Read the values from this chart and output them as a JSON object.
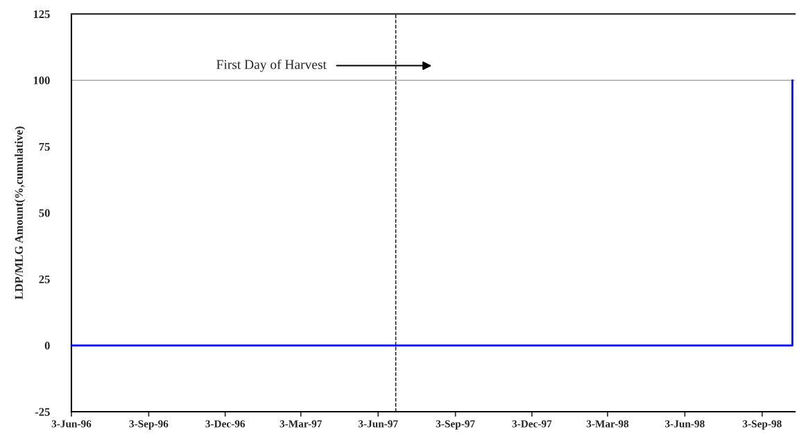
{
  "chart_data": {
    "type": "line",
    "ylabel": "LDP/MLG Amount(%,cumulative)",
    "series": [
      {
        "color": "#0000ff",
        "x": [
          "1996-06-03",
          "1998-10-09",
          "1998-10-09"
        ],
        "values": [
          0,
          0,
          100
        ]
      }
    ],
    "xlim": [
      "1996-06-03",
      "1998-10-12"
    ],
    "xticks": [
      {
        "value": "1996-06-03",
        "label": "3-Jun-96"
      },
      {
        "value": "1996-09-03",
        "label": "3-Sep-96"
      },
      {
        "value": "1996-12-03",
        "label": "3-Dec-96"
      },
      {
        "value": "1997-03-03",
        "label": "3-Mar-97"
      },
      {
        "value": "1997-06-03",
        "label": "3-Jun-97"
      },
      {
        "value": "1997-09-03",
        "label": "3-Sep-97"
      },
      {
        "value": "1997-12-03",
        "label": "3-Dec-97"
      },
      {
        "value": "1998-03-03",
        "label": "3-Mar-98"
      },
      {
        "value": "1998-06-03",
        "label": "3-Jun-98"
      },
      {
        "value": "1998-09-03",
        "label": "3-Sep-98"
      }
    ],
    "ylim": [
      -25,
      125
    ],
    "yticks": [
      -25,
      0,
      25,
      50,
      75,
      100,
      125
    ],
    "ref_lines": [
      {
        "axis": "x",
        "value": "1997-06-24",
        "color": "#000000",
        "line_style": "dashed"
      },
      {
        "axis": "y",
        "value": 100,
        "color": "#999999",
        "line_style": "solid"
      }
    ],
    "annotations": [
      "First Day of Harvest"
    ],
    "grid": false,
    "legend": false,
    "marker": "none",
    "line_style": "solid"
  }
}
